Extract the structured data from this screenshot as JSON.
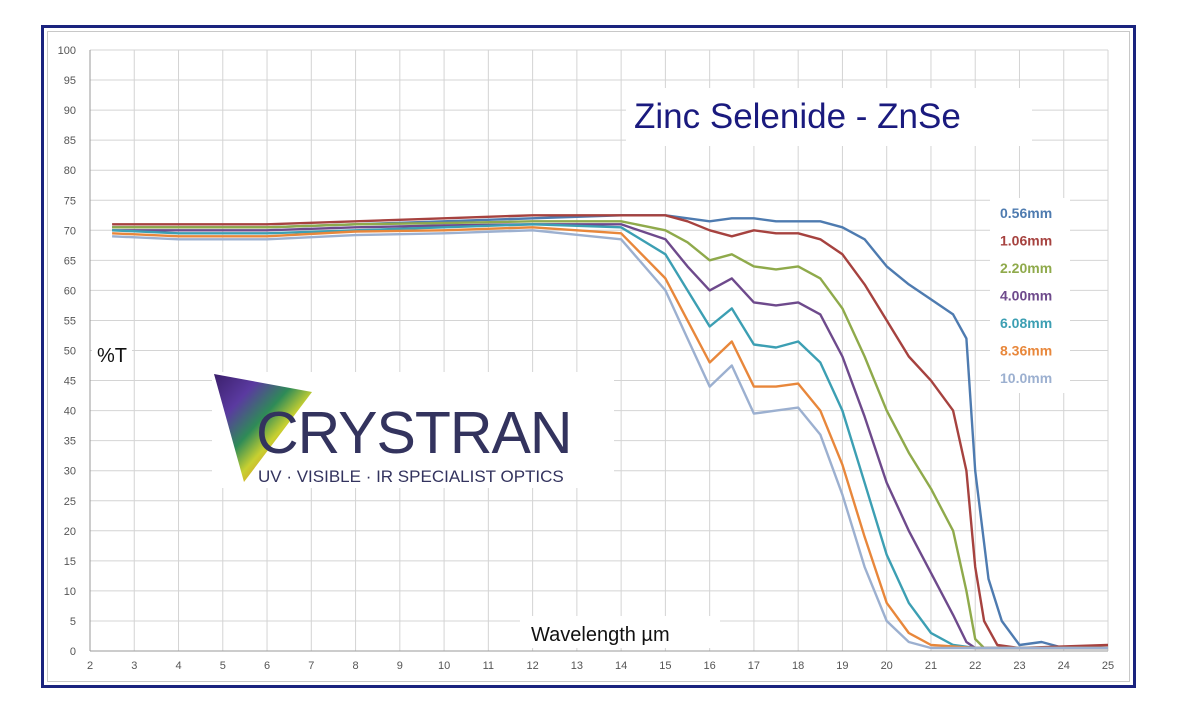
{
  "chart_data": {
    "type": "line",
    "title": "Zinc Selenide - ZnSe",
    "xlabel": "Wavelength µm",
    "ylabel": "%T",
    "xlim": [
      2,
      25
    ],
    "ylim": [
      0,
      100
    ],
    "x_ticks": [
      2,
      3,
      4,
      5,
      6,
      7,
      8,
      9,
      10,
      11,
      12,
      13,
      14,
      15,
      16,
      17,
      18,
      19,
      20,
      21,
      22,
      23,
      24,
      25
    ],
    "y_ticks": [
      0,
      5,
      10,
      15,
      20,
      25,
      30,
      35,
      40,
      45,
      50,
      55,
      60,
      65,
      70,
      75,
      80,
      85,
      90,
      95,
      100
    ],
    "grid": true,
    "legend_position": "right",
    "series": [
      {
        "name": "0.56mm",
        "color": "#4e7bb0",
        "points": [
          [
            2.5,
            70.5
          ],
          [
            4,
            70.5
          ],
          [
            6,
            70.5
          ],
          [
            8,
            71
          ],
          [
            10,
            71.5
          ],
          [
            12,
            72
          ],
          [
            14,
            72.5
          ],
          [
            15,
            72.5
          ],
          [
            15.5,
            72
          ],
          [
            16,
            71.5
          ],
          [
            16.5,
            72
          ],
          [
            17,
            72
          ],
          [
            17.5,
            71.5
          ],
          [
            18,
            71.5
          ],
          [
            18.5,
            71.5
          ],
          [
            19,
            70.5
          ],
          [
            19.5,
            68.5
          ],
          [
            20,
            64
          ],
          [
            20.5,
            61
          ],
          [
            21,
            58.5
          ],
          [
            21.5,
            56
          ],
          [
            21.8,
            52
          ],
          [
            22,
            30
          ],
          [
            22.3,
            12
          ],
          [
            22.6,
            5
          ],
          [
            23,
            1
          ],
          [
            23.5,
            1.5
          ],
          [
            24,
            0.5
          ],
          [
            25,
            0.5
          ]
        ]
      },
      {
        "name": "1.06mm",
        "color": "#a6423f",
        "points": [
          [
            2.5,
            71
          ],
          [
            4,
            71
          ],
          [
            6,
            71
          ],
          [
            8,
            71.5
          ],
          [
            10,
            72
          ],
          [
            12,
            72.5
          ],
          [
            14,
            72.5
          ],
          [
            15,
            72.5
          ],
          [
            15.5,
            71.5
          ],
          [
            16,
            70
          ],
          [
            16.5,
            69
          ],
          [
            17,
            70
          ],
          [
            17.5,
            69.5
          ],
          [
            18,
            69.5
          ],
          [
            18.5,
            68.5
          ],
          [
            19,
            66
          ],
          [
            19.5,
            61
          ],
          [
            20,
            55
          ],
          [
            20.5,
            49
          ],
          [
            21,
            45
          ],
          [
            21.5,
            40
          ],
          [
            21.8,
            30
          ],
          [
            22,
            14
          ],
          [
            22.2,
            5
          ],
          [
            22.5,
            1
          ],
          [
            23,
            0.5
          ],
          [
            25,
            1
          ]
        ]
      },
      {
        "name": "2.20mm",
        "color": "#8faa4b",
        "points": [
          [
            2.5,
            70.5
          ],
          [
            4,
            70.5
          ],
          [
            6,
            70.5
          ],
          [
            8,
            71
          ],
          [
            10,
            71.2
          ],
          [
            12,
            71.5
          ],
          [
            14,
            71.5
          ],
          [
            15,
            70
          ],
          [
            15.5,
            68
          ],
          [
            16,
            65
          ],
          [
            16.5,
            66
          ],
          [
            17,
            64
          ],
          [
            17.5,
            63.5
          ],
          [
            18,
            64
          ],
          [
            18.5,
            62
          ],
          [
            19,
            57
          ],
          [
            19.5,
            49
          ],
          [
            20,
            40
          ],
          [
            20.5,
            33
          ],
          [
            21,
            27
          ],
          [
            21.5,
            20
          ],
          [
            21.8,
            10
          ],
          [
            22,
            2
          ],
          [
            22.2,
            0.5
          ],
          [
            25,
            0.5
          ]
        ]
      },
      {
        "name": "4.00mm",
        "color": "#6e4a8c",
        "points": [
          [
            2.5,
            70
          ],
          [
            4,
            70
          ],
          [
            6,
            70
          ],
          [
            8,
            70.5
          ],
          [
            10,
            70.8
          ],
          [
            12,
            71
          ],
          [
            14,
            71
          ],
          [
            15,
            68.5
          ],
          [
            15.5,
            64
          ],
          [
            16,
            60
          ],
          [
            16.5,
            62
          ],
          [
            17,
            58
          ],
          [
            17.5,
            57.5
          ],
          [
            18,
            58
          ],
          [
            18.5,
            56
          ],
          [
            19,
            49
          ],
          [
            19.5,
            39
          ],
          [
            20,
            28
          ],
          [
            20.5,
            20
          ],
          [
            21,
            13
          ],
          [
            21.5,
            6
          ],
          [
            21.8,
            1.5
          ],
          [
            22,
            0.5
          ],
          [
            25,
            0.5
          ]
        ]
      },
      {
        "name": "6.08mm",
        "color": "#3c9fb3",
        "points": [
          [
            2.5,
            70
          ],
          [
            4,
            69.5
          ],
          [
            6,
            69.5
          ],
          [
            8,
            70
          ],
          [
            10,
            70.5
          ],
          [
            12,
            71
          ],
          [
            14,
            70.5
          ],
          [
            15,
            66
          ],
          [
            15.5,
            60
          ],
          [
            16,
            54
          ],
          [
            16.5,
            57
          ],
          [
            17,
            51
          ],
          [
            17.5,
            50.5
          ],
          [
            18,
            51.5
          ],
          [
            18.5,
            48
          ],
          [
            19,
            40
          ],
          [
            19.5,
            28
          ],
          [
            20,
            16
          ],
          [
            20.5,
            8
          ],
          [
            21,
            3
          ],
          [
            21.5,
            1
          ],
          [
            22,
            0.5
          ],
          [
            25,
            0.5
          ]
        ]
      },
      {
        "name": "8.36mm",
        "color": "#e8873b",
        "points": [
          [
            2.5,
            69.5
          ],
          [
            4,
            69
          ],
          [
            6,
            69
          ],
          [
            8,
            69.8
          ],
          [
            10,
            70
          ],
          [
            12,
            70.5
          ],
          [
            14,
            69.5
          ],
          [
            15,
            62
          ],
          [
            15.5,
            55
          ],
          [
            16,
            48
          ],
          [
            16.5,
            51.5
          ],
          [
            17,
            44
          ],
          [
            17.5,
            44
          ],
          [
            18,
            44.5
          ],
          [
            18.5,
            40
          ],
          [
            19,
            31
          ],
          [
            19.5,
            19
          ],
          [
            20,
            8
          ],
          [
            20.5,
            3
          ],
          [
            21,
            1
          ],
          [
            22,
            0.5
          ],
          [
            25,
            0.5
          ]
        ]
      },
      {
        "name": "10.0mm",
        "color": "#9cb0d0",
        "points": [
          [
            2.5,
            69
          ],
          [
            4,
            68.5
          ],
          [
            6,
            68.5
          ],
          [
            8,
            69.2
          ],
          [
            10,
            69.5
          ],
          [
            12,
            70
          ],
          [
            14,
            68.5
          ],
          [
            15,
            60
          ],
          [
            15.5,
            52
          ],
          [
            16,
            44
          ],
          [
            16.5,
            47.5
          ],
          [
            17,
            39.5
          ],
          [
            17.5,
            40
          ],
          [
            18,
            40.5
          ],
          [
            18.5,
            36
          ],
          [
            19,
            26
          ],
          [
            19.5,
            14
          ],
          [
            20,
            5
          ],
          [
            20.5,
            1.5
          ],
          [
            21,
            0.5
          ],
          [
            25,
            0.5
          ]
        ]
      }
    ]
  },
  "logo": {
    "word": "CRYSTRAN",
    "tagline": "UV · VISIBLE · IR SPECIALIST OPTICS"
  }
}
